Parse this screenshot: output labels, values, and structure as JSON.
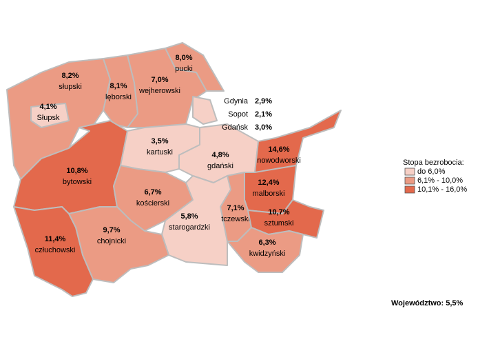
{
  "map": {
    "regions": [
      {
        "name": "słupski",
        "value_label": "8,2%",
        "color": "#eb9b84"
      },
      {
        "name": "Słupsk",
        "value_label": "4,1%",
        "color": "#f6d0c6"
      },
      {
        "name": "lęborski",
        "value_label": "8,1%",
        "color": "#eb9b84"
      },
      {
        "name": "wejherowski",
        "value_label": "7,0%",
        "color": "#eb9b84"
      },
      {
        "name": "pucki",
        "value_label": "8,0%",
        "color": "#eb9b84"
      },
      {
        "name": "bytowski",
        "value_label": "10,8%",
        "color": "#e3694c"
      },
      {
        "name": "kartuski",
        "value_label": "3,5%",
        "color": "#f6d0c6"
      },
      {
        "name": "gdański",
        "value_label": "4,8%",
        "color": "#f6d0c6"
      },
      {
        "name": "nowodworski",
        "value_label": "14,6%",
        "color": "#e3694c"
      },
      {
        "name": "kościerski",
        "value_label": "6,7%",
        "color": "#eb9b84"
      },
      {
        "name": "malborski",
        "value_label": "12,4%",
        "color": "#e3694c"
      },
      {
        "name": "starogardzki",
        "value_label": "5,8%",
        "color": "#f6d0c6"
      },
      {
        "name": "tczewski",
        "value_label": "7,1%",
        "color": "#eb9b84"
      },
      {
        "name": "sztumski",
        "value_label": "10,7%",
        "color": "#e3694c"
      },
      {
        "name": "kwidzyński",
        "value_label": "6,3%",
        "color": "#eb9b84"
      },
      {
        "name": "chojnicki",
        "value_label": "9,7%",
        "color": "#eb9b84"
      },
      {
        "name": "człuchowski",
        "value_label": "11,4%",
        "color": "#e3694c"
      }
    ],
    "cities": [
      {
        "name": "Gdynia",
        "value_label": "2,9%"
      },
      {
        "name": "Sopot",
        "value_label": "2,1%"
      },
      {
        "name": "Gdańsk",
        "value_label": "3,0%"
      }
    ],
    "cities_color": "#f6d0c6",
    "legend": {
      "title": "Stopa bezrobocia:",
      "items": [
        {
          "label": "do 6,0%",
          "color": "#f6d0c6"
        },
        {
          "label": "6,1% - 10,0%",
          "color": "#eb9b84"
        },
        {
          "label": "10,1% - 16,0%",
          "color": "#e3694c"
        }
      ]
    },
    "total": "Województwo: 5,5%"
  }
}
